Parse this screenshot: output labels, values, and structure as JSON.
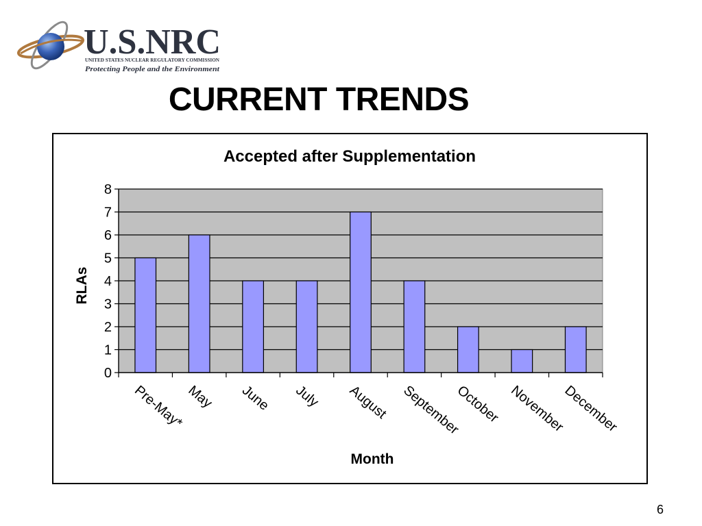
{
  "logo": {
    "wordmark": "U.S.NRC",
    "agency": "UNITED STATES NUCLEAR REGULATORY COMMISSION",
    "tagline": "Protecting People and the Environment"
  },
  "slide": {
    "title": "CURRENT TRENDS",
    "page_number": "6"
  },
  "colors": {
    "bar_fill": "#9999ff",
    "plot_background": "#c0c0c0"
  },
  "chart_data": {
    "type": "bar",
    "title": "Accepted after Supplementation",
    "xlabel": "Month",
    "ylabel": "RLAs",
    "categories": [
      "Pre-May*",
      "May",
      "June",
      "July",
      "August",
      "September",
      "October",
      "November",
      "December"
    ],
    "values": [
      5,
      6,
      4,
      4,
      7,
      4,
      2,
      1,
      2
    ],
    "ylim": [
      0,
      8
    ],
    "yticks": [
      "0",
      "1",
      "2",
      "3",
      "4",
      "5",
      "6",
      "7",
      "8"
    ],
    "grid": true,
    "legend": "none"
  }
}
